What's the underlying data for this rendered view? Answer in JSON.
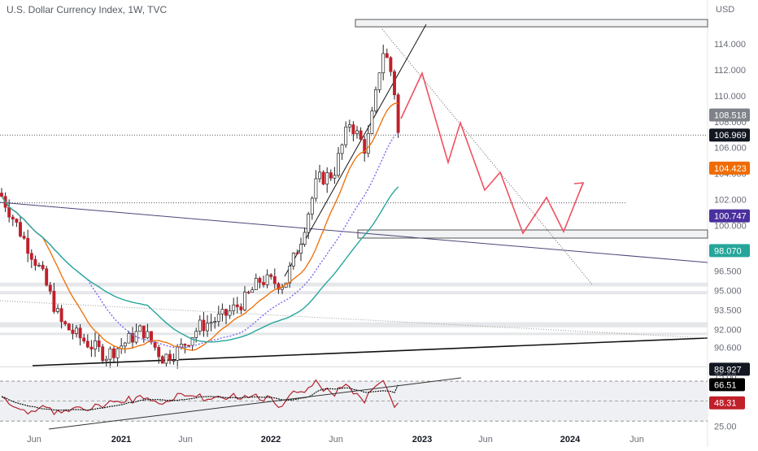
{
  "header": {
    "title": "U.S. Dollar Currency Index, 1W, TVC"
  },
  "chart_data": {
    "type": "candlestick",
    "currency": "USD",
    "main_pane": {
      "ylim": [
        89.2,
        116.0
      ],
      "y_tick_labels": [
        "114.000",
        "112.000",
        "110.000",
        "108.000",
        "106.000",
        "104.000",
        "102.000",
        "100.000",
        "96.500",
        "95.000",
        "93.500",
        "92.000",
        "90.600"
      ],
      "y_ticks": [
        114.0,
        112.0,
        110.0,
        108.0,
        106.0,
        104.0,
        102.0,
        100.0,
        96.5,
        95.0,
        93.5,
        92.0,
        90.6
      ],
      "price_labels": [
        {
          "text": "108.518",
          "value": 108.518,
          "color": "#7f8389"
        },
        {
          "text": "106.969",
          "value": 106.969,
          "color": "#131722"
        },
        {
          "text": "104.423",
          "value": 104.423,
          "color": "#ef6c00"
        },
        {
          "text": "100.747",
          "value": 100.747,
          "color": "#4a2f9e"
        },
        {
          "text": "98.070",
          "value": 98.07,
          "color": "#26a69a"
        },
        {
          "text": "88.927",
          "value": 88.927,
          "color": "#131722"
        }
      ],
      "last_close": 106.969
    },
    "rsi_pane": {
      "ylim": [
        22,
        79
      ],
      "y_tick_labels": [
        "75.00",
        "50.00",
        "25.00"
      ],
      "y_ticks": [
        75,
        50,
        25
      ],
      "levels": [
        70,
        50,
        30
      ],
      "price_labels": [
        {
          "text": "66.51",
          "value": 66.51,
          "color": "#000000"
        },
        {
          "text": "48.31",
          "value": 48.31,
          "color": "#c0202a"
        }
      ]
    },
    "x_axis": [
      "Jun",
      "2021",
      "Jun",
      "2022",
      "Jun",
      "2023",
      "Jun",
      "2024",
      "Jun"
    ],
    "x_axis_bold": [
      false,
      true,
      false,
      true,
      false,
      true,
      false,
      true,
      false
    ],
    "colors": {
      "bull": "#ffffff",
      "bear": "#c0202a",
      "wick": "#222222",
      "ma_fast": "#ef6c00",
      "ma_mid": "#7b68ee",
      "ma_slow": "#26a69a",
      "projection": "#f05060",
      "rsi": "#b2222c"
    }
  }
}
